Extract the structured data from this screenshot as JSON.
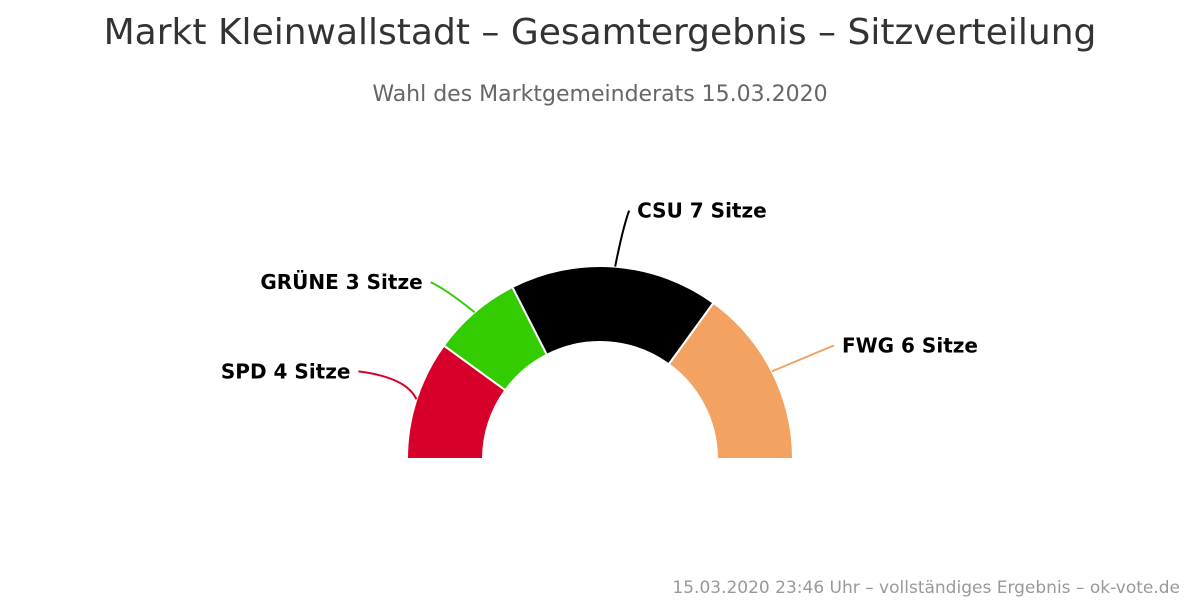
{
  "chart_data": {
    "type": "pie",
    "variant": "semi-circle (parliament seat distribution)",
    "title": "Markt Kleinwallstadt – Gesamtergebnis – Sitzverteilung",
    "subtitle": "Wahl des Marktgemeinderats 15.03.2020",
    "seat_unit": "Sitze",
    "slices": [
      {
        "name": "SPD",
        "value": 4,
        "label": "SPD 4 Sitze",
        "color": "#d6002b"
      },
      {
        "name": "GRÜNE",
        "value": 3,
        "label": "GRÜNE 3 Sitze",
        "color": "#33cc00"
      },
      {
        "name": "CSU",
        "value": 7,
        "label": "CSU 7 Sitze",
        "color": "#000000"
      },
      {
        "name": "FWG",
        "value": 6,
        "label": "FWG 6 Sitze",
        "color": "#f4a261"
      }
    ],
    "total_seats": 20,
    "credits": "15.03.2020 23:46 Uhr – vollständiges Ergebnis – ok-vote.de"
  }
}
